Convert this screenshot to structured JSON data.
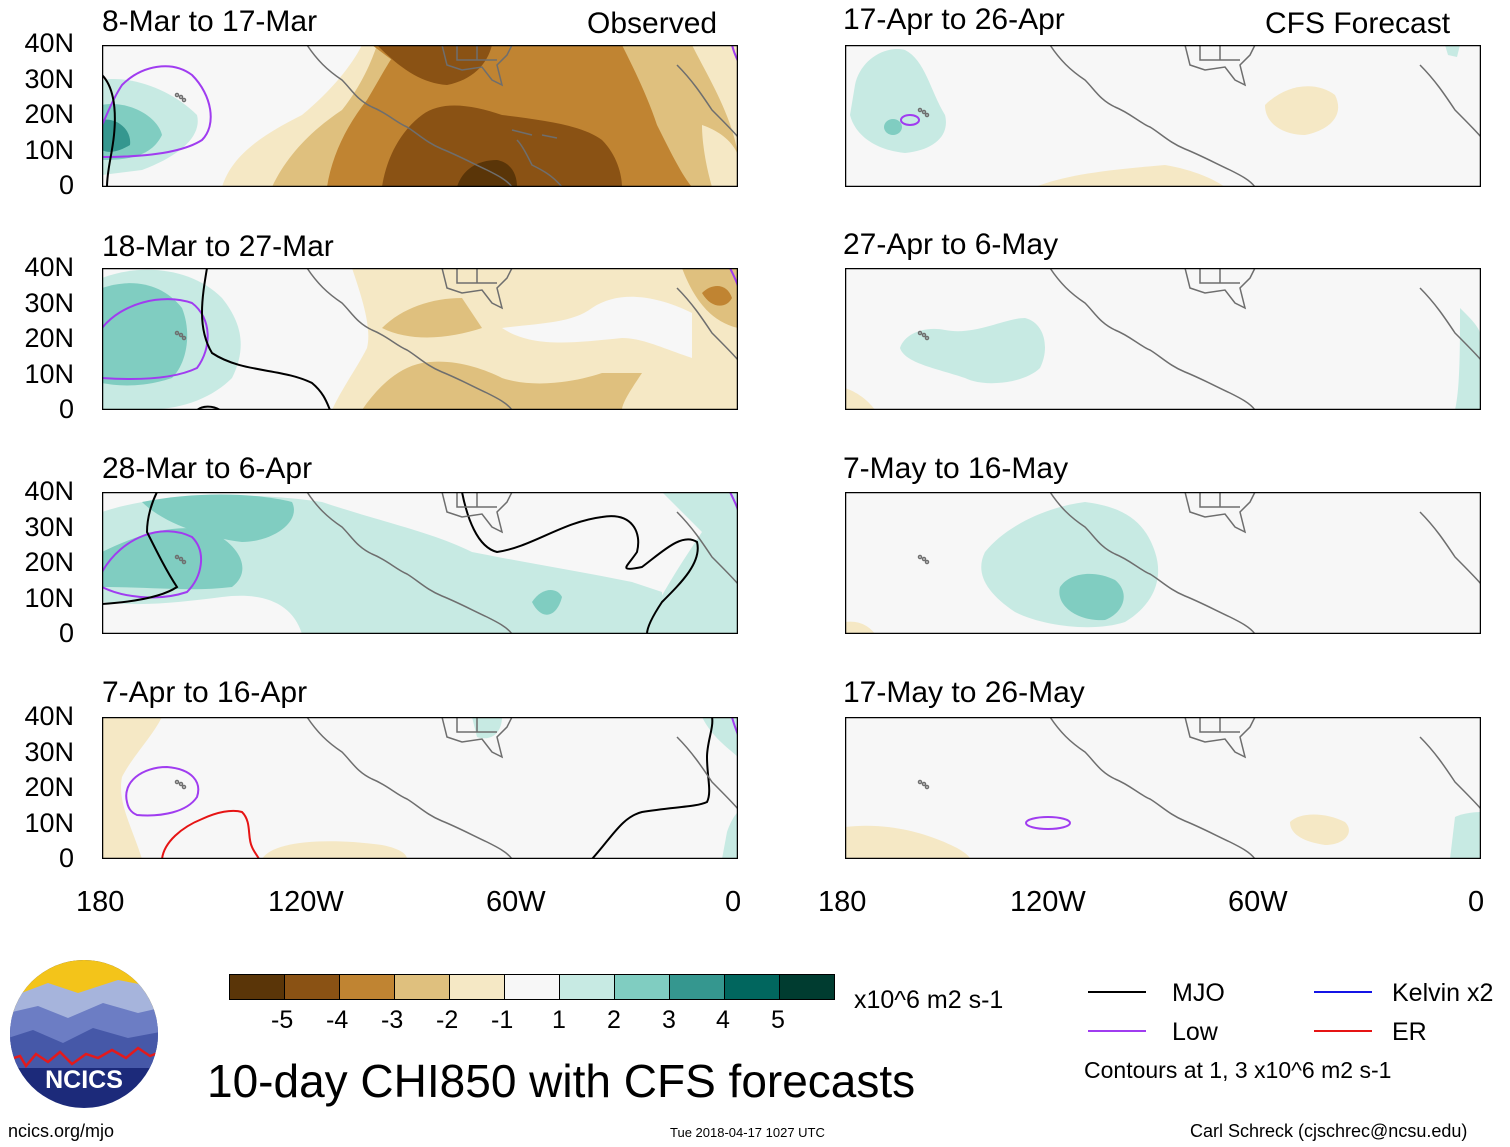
{
  "header": {
    "observed_label": "Observed",
    "forecast_label": "CFS Forecast"
  },
  "panels": [
    {
      "title": "8-Mar to 17-Mar"
    },
    {
      "title": "18-Mar to 27-Mar"
    },
    {
      "title": "28-Mar to 6-Apr"
    },
    {
      "title": "7-Apr to 16-Apr"
    },
    {
      "title": "17-Apr to 26-Apr"
    },
    {
      "title": "27-Apr to 6-May"
    },
    {
      "title": "7-May to 16-May"
    },
    {
      "title": "17-May to 26-May"
    }
  ],
  "y_axis": [
    "40N",
    "30N",
    "20N",
    "10N",
    "0"
  ],
  "x_axis": [
    "180",
    "120W",
    "60W",
    "0"
  ],
  "colorbar": {
    "labels": [
      "-5",
      "-4",
      "-3",
      "-2",
      "-1",
      "1",
      "2",
      "3",
      "4",
      "5"
    ],
    "colors": [
      "#5a3508",
      "#8a5214",
      "#c08432",
      "#dfc07e",
      "#f5e8c5",
      "#f7f7f7",
      "#c7eae3",
      "#80cdc1",
      "#35978f",
      "#01665e",
      "#003c30"
    ],
    "units": "x10^6 m2 s-1"
  },
  "legend": {
    "items": [
      {
        "label": "MJO",
        "color": "#000000"
      },
      {
        "label": "Low",
        "color": "#a03cf0"
      },
      {
        "label": "Kelvin x2",
        "color": "#1414e6"
      },
      {
        "label": "ER",
        "color": "#e61414"
      }
    ],
    "contours_note": "Contours at 1, 3 x10^6 m2 s-1"
  },
  "logo": {
    "text": "NCICS"
  },
  "title": "10-day CHI850 with CFS forecasts",
  "footer": {
    "left": "ncics.org/mjo",
    "center": "Tue 2018-04-17 1027 UTC",
    "right": "Carl Schreck (cjschrec@ncsu.edu)"
  }
}
